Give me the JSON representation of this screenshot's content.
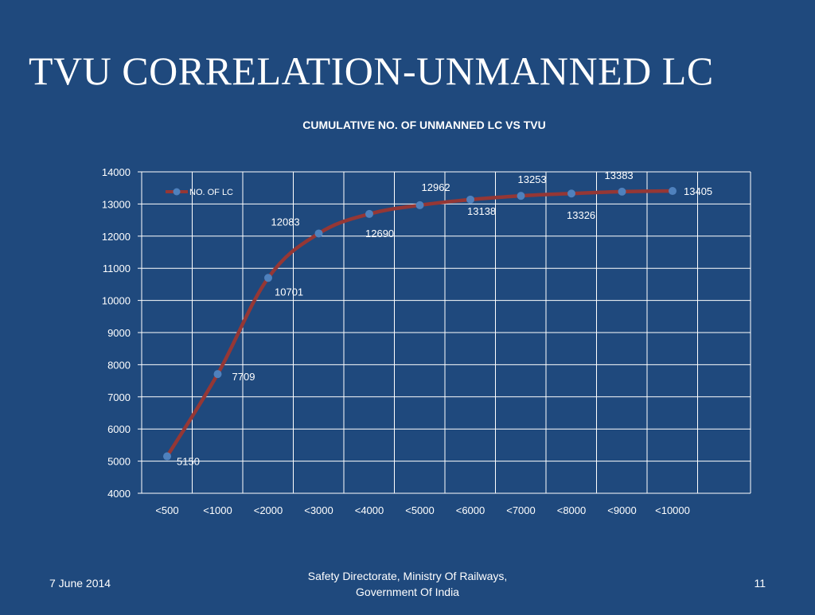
{
  "slide": {
    "title": "TVU CORRELATION-UNMANNED LC"
  },
  "footer": {
    "date": "7 June 2014",
    "center_line1": "Safety Directorate, Ministry Of  Railways,",
    "center_line2": "Government Of India",
    "page_number": "11"
  },
  "chart_data": {
    "type": "line",
    "title": "CUMULATIVE NO. OF UNMANNED LC VS TVU",
    "xlabel": "",
    "ylabel": "",
    "categories": [
      "<500",
      "<1000",
      "<2000",
      "<3000",
      "<4000",
      "<5000",
      "<6000",
      "<7000",
      "<8000",
      "<9000",
      "<10000"
    ],
    "series": [
      {
        "name": "NO. OF LC",
        "values": [
          5150,
          7709,
          10701,
          12083,
          12690,
          12962,
          13138,
          13253,
          13326,
          13383,
          13405
        ]
      }
    ],
    "ylim": [
      4000,
      14000
    ],
    "yticks": [
      4000,
      5000,
      6000,
      7000,
      8000,
      9000,
      10000,
      11000,
      12000,
      13000,
      14000
    ],
    "grid": true,
    "legend_position": "top-left",
    "line_color": "#953735",
    "marker_color": "#4f81bd"
  }
}
